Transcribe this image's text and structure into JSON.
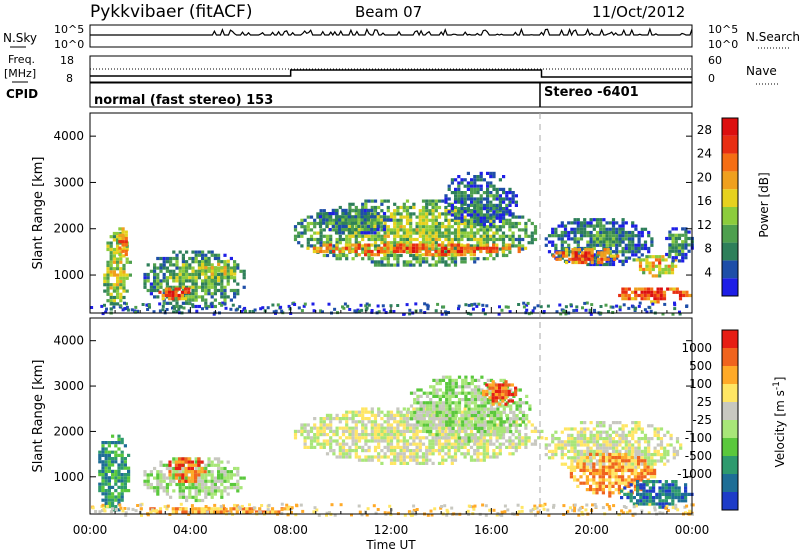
{
  "header": {
    "radar": "Pykkvibaer (fitACF)",
    "beam": "Beam 07",
    "date": "11/Oct/2012"
  },
  "noise_panel": {
    "left_label": "N.Sky",
    "left_ticks": [
      "10^5",
      "10^0"
    ],
    "right_label": "N.Search",
    "right_ticks": [
      "10^5",
      "10^0"
    ]
  },
  "freq_panel": {
    "left_label_1": "Freq.",
    "left_label_2": "[MHz]",
    "left_ticks": [
      "18",
      "8"
    ],
    "right_label": "Nave",
    "right_ticks": [
      "60",
      "0"
    ]
  },
  "cpid_panel": {
    "label": "CPID",
    "mode_1": "normal (fast stereo) 153",
    "mode_2": "Stereo -6401"
  },
  "chart_data": [
    {
      "type": "heatmap",
      "title": "Power",
      "xlabel": "Time UT",
      "ylabel": "Slant Range [km]",
      "xlim": [
        "00:00",
        "24:00"
      ],
      "ylim": [
        180,
        4500
      ],
      "x_ticks": [
        "00:00",
        "04:00",
        "08:00",
        "12:00",
        "16:00",
        "20:00",
        "00:00"
      ],
      "y_ticks": [
        1000,
        2000,
        3000,
        4000
      ],
      "colorbar": {
        "label": "Power [dB]",
        "ticks": [
          4,
          8,
          12,
          16,
          20,
          24,
          28
        ],
        "range": [
          0,
          30
        ],
        "colors": [
          "#1e1ee6",
          "#1e4ea8",
          "#2e7f5a",
          "#4e9f4e",
          "#8ccc3c",
          "#e6d21e",
          "#f0a01e",
          "#f56e14",
          "#e82e12",
          "#dc0f0f"
        ]
      },
      "regions": [
        {
          "t": [
            0.4,
            1.6
          ],
          "r": [
            300,
            2000
          ],
          "mean": 16
        },
        {
          "t": [
            1.0,
            1.5
          ],
          "r": [
            1400,
            2100
          ],
          "mean": 22
        },
        {
          "t": [
            2.0,
            6.2
          ],
          "r": [
            300,
            1600
          ],
          "mean": 12
        },
        {
          "t": [
            2.6,
            4.0
          ],
          "r": [
            480,
            800
          ],
          "mean": 26
        },
        {
          "t": [
            4.3,
            5.8
          ],
          "r": [
            900,
            1400
          ],
          "mean": 18
        },
        {
          "t": [
            8.0,
            17.8
          ],
          "r": [
            1200,
            2700
          ],
          "mean": 14
        },
        {
          "t": [
            8.5,
            17.5
          ],
          "r": [
            1450,
            1750
          ],
          "mean": 25
        },
        {
          "t": [
            9.0,
            12.0
          ],
          "r": [
            1900,
            2500
          ],
          "mean": 10
        },
        {
          "t": [
            14.0,
            17.0
          ],
          "r": [
            2100,
            3300
          ],
          "mean": 8
        },
        {
          "t": [
            18.0,
            22.4
          ],
          "r": [
            1200,
            2300
          ],
          "mean": 9
        },
        {
          "t": [
            18.3,
            21.0
          ],
          "r": [
            1250,
            1650
          ],
          "mean": 24
        },
        {
          "t": [
            21.5,
            23.4
          ],
          "r": [
            1000,
            1500
          ],
          "mean": 20
        },
        {
          "t": [
            20.8,
            24.0
          ],
          "r": [
            450,
            800
          ],
          "mean": 26
        },
        {
          "t": [
            22.8,
            24.0
          ],
          "r": [
            1300,
            2100
          ],
          "mean": 10
        }
      ]
    },
    {
      "type": "heatmap",
      "title": "Velocity",
      "xlabel": "Time UT",
      "ylabel": "Slant Range [km]",
      "xlim": [
        "00:00",
        "24:00"
      ],
      "ylim": [
        180,
        4500
      ],
      "x_ticks": [
        "00:00",
        "04:00",
        "08:00",
        "12:00",
        "16:00",
        "20:00",
        "00:00"
      ],
      "y_ticks": [
        1000,
        2000,
        3000,
        4000
      ],
      "colorbar": {
        "label": "Velocity [m s^-1]",
        "ticks": [
          1000,
          500,
          100,
          25,
          -25,
          -100,
          -500,
          -1000
        ],
        "colors": [
          "#1e3cc8",
          "#1e6e96",
          "#2e9a6e",
          "#5ac83c",
          "#a8e678",
          "#c8c8c0",
          "#ffe664",
          "#ffaa28",
          "#f0641e",
          "#e61e14"
        ]
      },
      "regions": [
        {
          "t": [
            0.2,
            1.6
          ],
          "r": [
            250,
            2000
          ],
          "mean": 2
        },
        {
          "t": [
            1.6,
            8.0
          ],
          "r": [
            200,
            400
          ],
          "mean": 7
        },
        {
          "t": [
            2.0,
            6.2
          ],
          "r": [
            500,
            1500
          ],
          "mean": 4
        },
        {
          "t": [
            3.0,
            4.6
          ],
          "r": [
            900,
            1500
          ],
          "mean": 8
        },
        {
          "t": [
            8.0,
            18.0
          ],
          "r": [
            1300,
            2600
          ],
          "mean": 5
        },
        {
          "t": [
            12.5,
            17.5
          ],
          "r": [
            1800,
            3300
          ],
          "mean": 4
        },
        {
          "t": [
            15.5,
            17.0
          ],
          "r": [
            2600,
            3200
          ],
          "mean": 8
        },
        {
          "t": [
            18.0,
            23.5
          ],
          "r": [
            1100,
            2300
          ],
          "mean": 5
        },
        {
          "t": [
            19.0,
            22.5
          ],
          "r": [
            600,
            1600
          ],
          "mean": 7
        },
        {
          "t": [
            21.0,
            24.0
          ],
          "r": [
            350,
            1000
          ],
          "mean": 1
        }
      ]
    }
  ]
}
